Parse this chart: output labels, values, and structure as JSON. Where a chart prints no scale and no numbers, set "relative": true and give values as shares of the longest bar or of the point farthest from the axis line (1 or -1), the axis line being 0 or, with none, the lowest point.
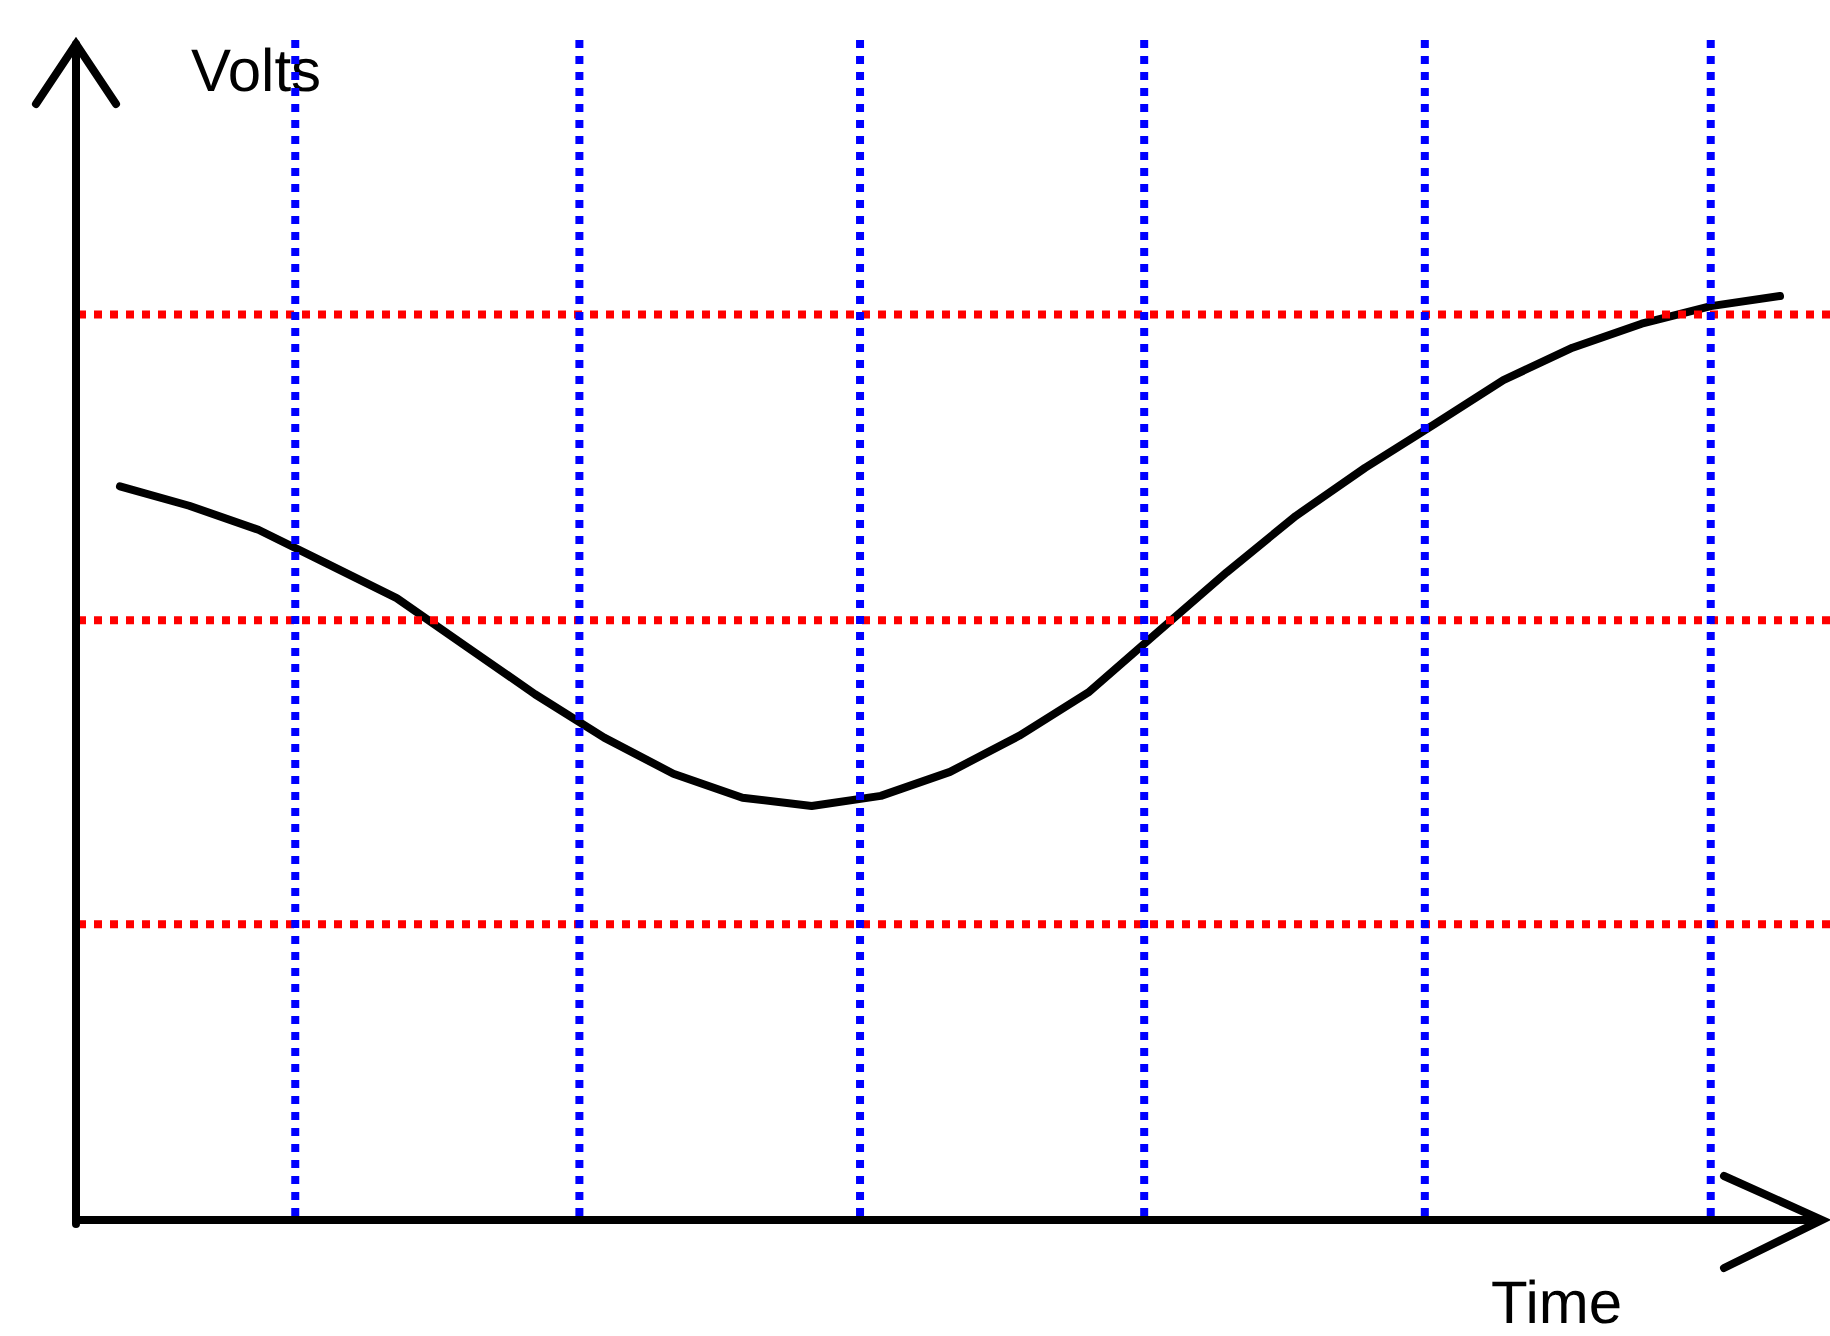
{
  "chart_data": {
    "type": "line",
    "xlabel": "Time",
    "ylabel": "Volts",
    "relative": true,
    "line_style": "solid",
    "marker": "none",
    "categories": [
      null,
      null,
      null,
      null,
      null,
      null,
      null,
      null,
      null,
      null,
      null,
      null,
      null,
      null,
      null,
      null,
      null,
      null,
      null,
      null,
      null,
      null,
      null,
      null,
      null
    ],
    "series": [
      {
        "color": "#000000",
        "values": [
          0.794,
          0.773,
          0.747,
          0.71,
          0.673,
          0.621,
          0.569,
          0.522,
          0.483,
          0.457,
          0.448,
          0.459,
          0.485,
          0.524,
          0.571,
          0.636,
          0.701,
          0.762,
          0.814,
          0.861,
          0.909,
          0.944,
          0.97,
          0.989,
          1.0
        ]
      }
    ],
    "ref_lines": [
      {
        "axis": "y",
        "value": 0.98,
        "color": "#ff0000",
        "line_style": "dotted"
      },
      {
        "axis": "y",
        "value": 0.649,
        "color": "#ff0000",
        "line_style": "dotted"
      },
      {
        "axis": "y",
        "value": 0.32,
        "color": "#ff0000",
        "line_style": "dotted"
      }
    ]
  }
}
